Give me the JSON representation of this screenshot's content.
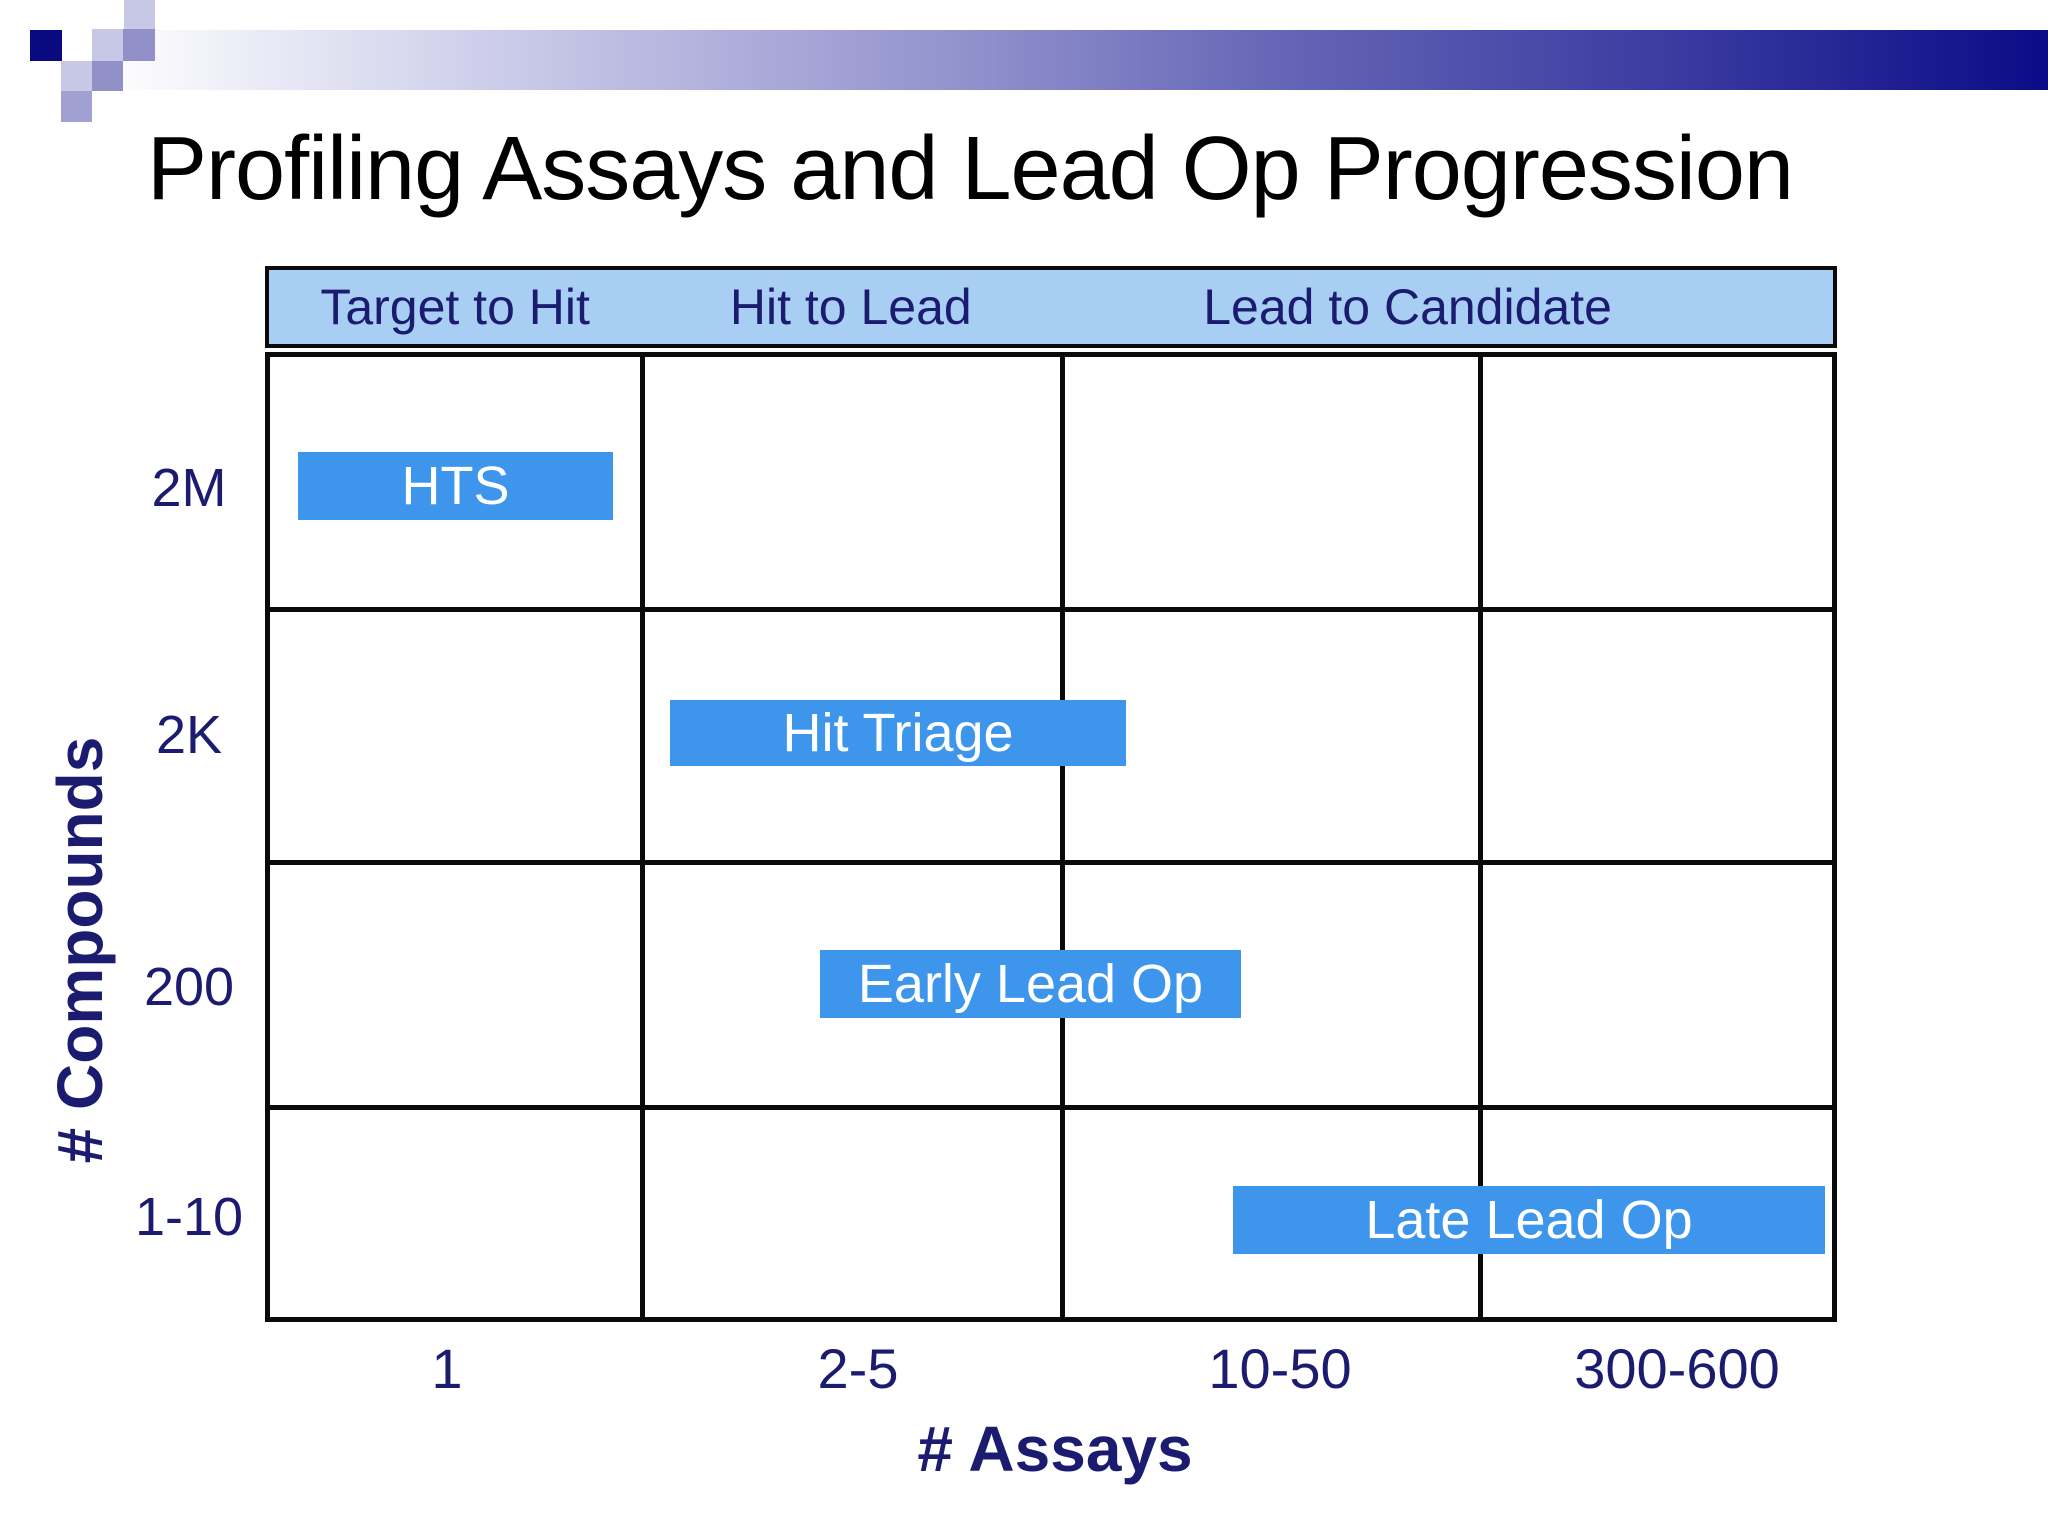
{
  "slide": {
    "title": "Profiling Assays and Lead Op Progression"
  },
  "chart_data": {
    "type": "table",
    "title": "Profiling Assays and Lead Op Progression",
    "xlabel": "# Assays",
    "ylabel": "# Compounds",
    "x_ticks": [
      "1",
      "2-5",
      "10-50",
      "300-600"
    ],
    "y_ticks": [
      "2M",
      "2K",
      "200",
      "1-10"
    ],
    "grid": true,
    "phase_headers": [
      {
        "label": "Target to Hit",
        "cols": [
          1
        ]
      },
      {
        "label": "Hit to Lead",
        "cols": [
          2
        ]
      },
      {
        "label": "Lead to Candidate",
        "cols": [
          3,
          4
        ]
      }
    ],
    "stages": [
      {
        "label": "HTS",
        "compounds": "2M",
        "assays": "1",
        "row": 1,
        "col_start": 1.0,
        "col_end": 1.85
      },
      {
        "label": "Hit Triage",
        "compounds": "2K",
        "assays": "2-5",
        "row": 2,
        "col_start": 2.07,
        "col_end": 3.16
      },
      {
        "label": "Early Lead Op",
        "compounds": "200",
        "assays": "2-5 to 10-50",
        "row": 3,
        "col_start": 2.43,
        "col_end": 3.43
      },
      {
        "label": "Late Lead Op",
        "compounds": "1-10",
        "assays": "10-50 to 300-600",
        "row": 4,
        "col_start": 3.41,
        "col_end": 4.98
      }
    ]
  },
  "colors": {
    "stage_bar_fill": "#3D96EC",
    "stage_bar_text": "#FFFFFF",
    "phase_header_fill": "#A9CEF4",
    "phase_header_border": "#0A0A0A",
    "axis_text": "#1B1B70",
    "grid_line": "#0A0A0A",
    "title_text": "#000000",
    "banner_dark": "#0B0B87",
    "deco_square_dark": "#0A0A80",
    "deco_square_light": "#C7C7E6",
    "deco_square_medium": "#9191C8"
  }
}
